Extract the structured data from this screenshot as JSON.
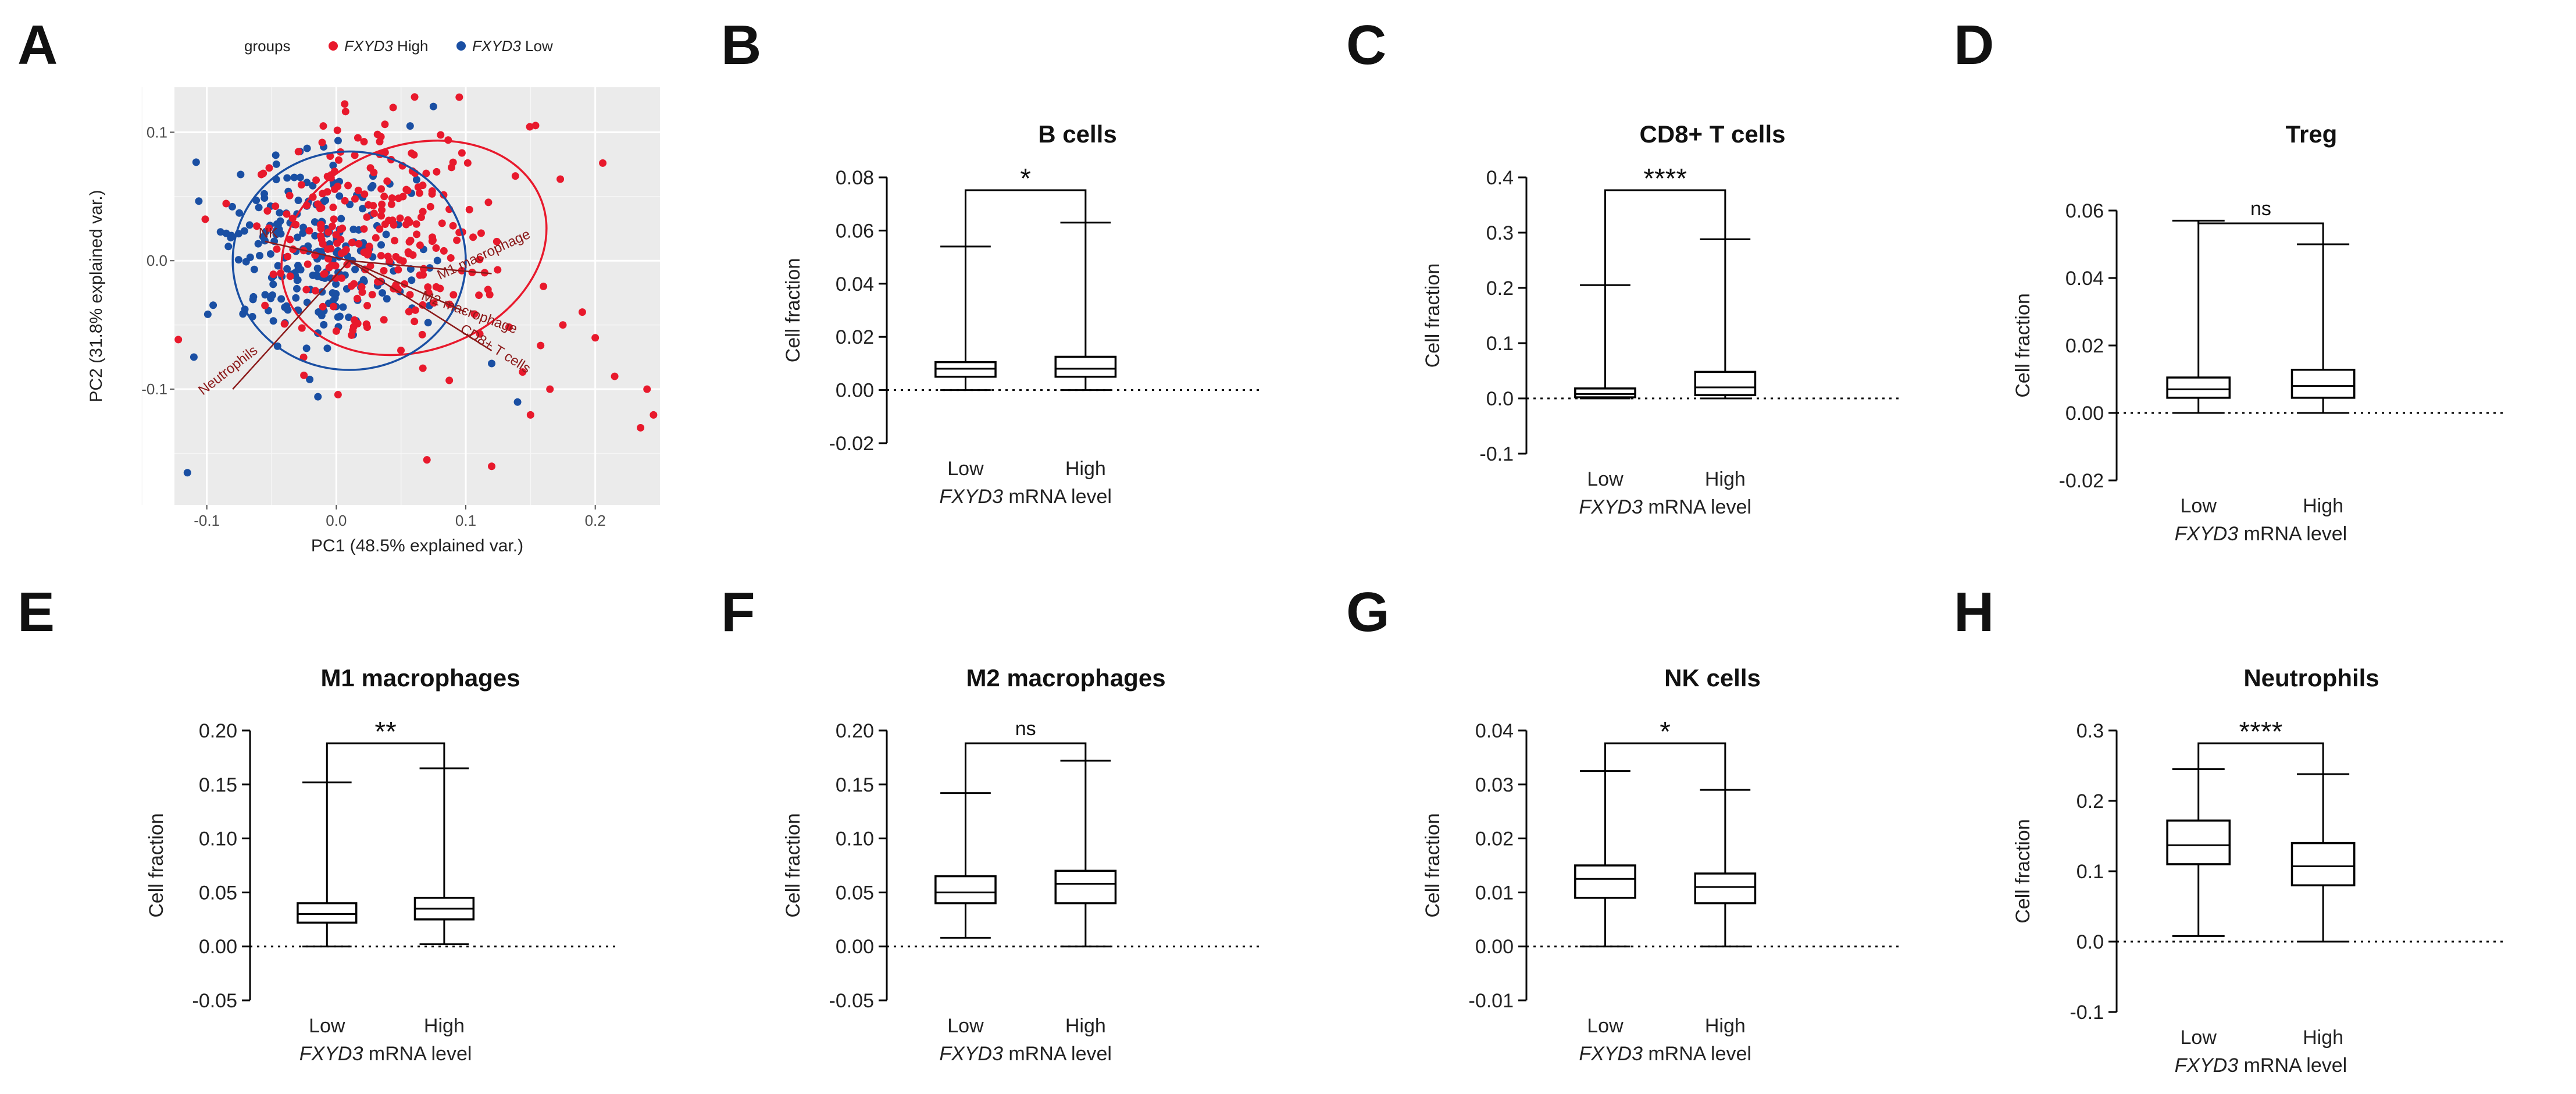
{
  "xlabel_gene": "FXYD3",
  "xlabel_suffix": " mRNA level",
  "ylabel": "Cell fraction",
  "groups": [
    "Low",
    "High"
  ],
  "colors": {
    "high": "#e8192c",
    "low": "#1a4fa3",
    "loading": "#8b1a1a"
  },
  "chart_data": [
    {
      "panel": "A",
      "type": "scatter",
      "xlabel": "PC1 (48.5% explained var.)",
      "ylabel": "PC2 (31.8% explained var.)",
      "xlim": [
        -0.125,
        0.25
      ],
      "ylim": [
        -0.19,
        0.135
      ],
      "xticks": [
        "-0.1",
        "0.0",
        "0.1",
        "0.2"
      ],
      "yticks": [
        "-0.1",
        "0.0",
        "0.1"
      ],
      "legend_title": "groups",
      "legend": [
        {
          "gene": "FXYD3",
          "text": " High"
        },
        {
          "gene": "FXYD3",
          "text": " Low"
        }
      ],
      "loadings": [
        "NK",
        "M1 macrophage",
        "M2 macrophage",
        "Neutrophils",
        "CD8+ T cells"
      ],
      "grid": true,
      "ellipses": [
        {
          "group": "High",
          "center": [
            0.06,
            0.01
          ],
          "rx": 0.105,
          "ry": 0.08,
          "angle": -20
        },
        {
          "group": "Low",
          "center": [
            0.01,
            0.0
          ],
          "rx": 0.09,
          "ry": 0.085,
          "angle": 0
        }
      ]
    },
    {
      "panel": "B",
      "type": "box",
      "title": "B cells",
      "ylim": [
        -0.02,
        0.08
      ],
      "yticks": [
        "-0.02",
        "0.00",
        "0.02",
        "0.04",
        "0.06",
        "0.08"
      ],
      "sig": "*",
      "boxes": [
        {
          "group": "Low",
          "min": 0.0,
          "q1": 0.005,
          "median": 0.008,
          "q3": 0.0105,
          "max": 0.054
        },
        {
          "group": "High",
          "min": 0.0,
          "q1": 0.005,
          "median": 0.008,
          "q3": 0.0125,
          "max": 0.063
        }
      ]
    },
    {
      "panel": "C",
      "type": "box",
      "title": "CD8+ T cells",
      "ylim": [
        -0.1,
        0.4
      ],
      "yticks": [
        "-0.1",
        "0.0",
        "0.1",
        "0.2",
        "0.3",
        "0.4"
      ],
      "sig": "****",
      "boxes": [
        {
          "group": "Low",
          "min": 0.0,
          "q1": 0.002,
          "median": 0.008,
          "q3": 0.018,
          "max": 0.205
        },
        {
          "group": "High",
          "min": 0.0,
          "q1": 0.006,
          "median": 0.02,
          "q3": 0.048,
          "max": 0.288
        }
      ]
    },
    {
      "panel": "D",
      "type": "box",
      "title": "Treg",
      "ylim": [
        -0.02,
        0.06
      ],
      "yticks": [
        "-0.02",
        "0.00",
        "0.02",
        "0.04",
        "0.06"
      ],
      "sig": "ns",
      "boxes": [
        {
          "group": "Low",
          "min": 0.0,
          "q1": 0.0045,
          "median": 0.007,
          "q3": 0.0105,
          "max": 0.057
        },
        {
          "group": "High",
          "min": 0.0,
          "q1": 0.0045,
          "median": 0.008,
          "q3": 0.0128,
          "max": 0.05
        }
      ]
    },
    {
      "panel": "E",
      "type": "box",
      "title": "M1 macrophages",
      "ylim": [
        -0.05,
        0.2
      ],
      "yticks": [
        "-0.05",
        "0.00",
        "0.05",
        "0.10",
        "0.15",
        "0.20"
      ],
      "sig": "**",
      "boxes": [
        {
          "group": "Low",
          "min": 0.0,
          "q1": 0.022,
          "median": 0.03,
          "q3": 0.04,
          "max": 0.152
        },
        {
          "group": "High",
          "min": 0.002,
          "q1": 0.025,
          "median": 0.035,
          "q3": 0.045,
          "max": 0.165
        }
      ]
    },
    {
      "panel": "F",
      "type": "box",
      "title": "M2 macrophages",
      "ylim": [
        -0.05,
        0.2
      ],
      "yticks": [
        "-0.05",
        "0.00",
        "0.05",
        "0.10",
        "0.15",
        "0.20"
      ],
      "sig": "ns",
      "boxes": [
        {
          "group": "Low",
          "min": 0.008,
          "q1": 0.04,
          "median": 0.05,
          "q3": 0.065,
          "max": 0.142
        },
        {
          "group": "High",
          "min": 0.0,
          "q1": 0.04,
          "median": 0.058,
          "q3": 0.07,
          "max": 0.172
        }
      ]
    },
    {
      "panel": "G",
      "type": "box",
      "title": "NK cells",
      "ylim": [
        -0.01,
        0.04
      ],
      "yticks": [
        "-0.01",
        "0.00",
        "0.01",
        "0.02",
        "0.03",
        "0.04"
      ],
      "sig": "*",
      "boxes": [
        {
          "group": "Low",
          "min": 0.0,
          "q1": 0.009,
          "median": 0.0125,
          "q3": 0.015,
          "max": 0.0325
        },
        {
          "group": "High",
          "min": 0.0,
          "q1": 0.008,
          "median": 0.011,
          "q3": 0.0135,
          "max": 0.029
        }
      ]
    },
    {
      "panel": "H",
      "type": "box",
      "title": "Neutrophils",
      "ylim": [
        -0.1,
        0.3
      ],
      "yticks": [
        "-0.1",
        "0.0",
        "0.1",
        "0.2",
        "0.3"
      ],
      "sig": "****",
      "boxes": [
        {
          "group": "Low",
          "min": 0.008,
          "q1": 0.11,
          "median": 0.137,
          "q3": 0.172,
          "max": 0.245
        },
        {
          "group": "High",
          "min": 0.0,
          "q1": 0.08,
          "median": 0.107,
          "q3": 0.14,
          "max": 0.238
        }
      ]
    }
  ]
}
